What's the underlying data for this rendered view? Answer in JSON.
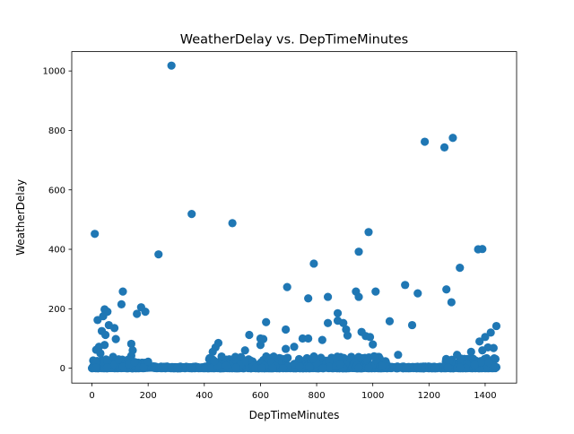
{
  "chart_data": {
    "type": "scatter",
    "title": "WeatherDelay vs. DepTimeMinutes",
    "xlabel": "DepTimeMinutes",
    "ylabel": "WeatherDelay",
    "xlim": [
      -72,
      1512
    ],
    "ylim": [
      -50,
      1065
    ],
    "xticks": [
      0,
      200,
      400,
      600,
      800,
      1000,
      1200,
      1400
    ],
    "yticks": [
      0,
      200,
      400,
      600,
      800,
      1000
    ],
    "grid": false,
    "color": "#1f77b4",
    "dense_bands": [
      {
        "x": [
          0,
          1440
        ],
        "y": [
          0,
          6
        ]
      },
      {
        "x": [
          0,
          200
        ],
        "y": [
          0,
          30
        ]
      },
      {
        "x": [
          400,
          1050
        ],
        "y": [
          0,
          40
        ]
      },
      {
        "x": [
          1260,
          1440
        ],
        "y": [
          0,
          35
        ]
      }
    ],
    "points": [
      [
        10,
        452
      ],
      [
        283,
        1018
      ],
      [
        355,
        519
      ],
      [
        500,
        488
      ],
      [
        237,
        383
      ],
      [
        110,
        258
      ],
      [
        45,
        198
      ],
      [
        55,
        190
      ],
      [
        40,
        175
      ],
      [
        175,
        205
      ],
      [
        190,
        190
      ],
      [
        160,
        183
      ],
      [
        20,
        162
      ],
      [
        105,
        215
      ],
      [
        60,
        145
      ],
      [
        80,
        135
      ],
      [
        35,
        125
      ],
      [
        48,
        112
      ],
      [
        85,
        98
      ],
      [
        45,
        78
      ],
      [
        140,
        82
      ],
      [
        145,
        60
      ],
      [
        140,
        42
      ],
      [
        30,
        50
      ],
      [
        15,
        62
      ],
      [
        25,
        72
      ],
      [
        75,
        38
      ],
      [
        95,
        30
      ],
      [
        200,
        22
      ],
      [
        1185,
        762
      ],
      [
        1285,
        775
      ],
      [
        1255,
        743
      ],
      [
        1310,
        338
      ],
      [
        1375,
        400
      ],
      [
        1390,
        401
      ],
      [
        1115,
        280
      ],
      [
        1160,
        252
      ],
      [
        1262,
        265
      ],
      [
        1280,
        222
      ],
      [
        1140,
        145
      ],
      [
        985,
        458
      ],
      [
        950,
        392
      ],
      [
        790,
        352
      ],
      [
        695,
        273
      ],
      [
        770,
        235
      ],
      [
        840,
        240
      ],
      [
        940,
        258
      ],
      [
        950,
        240
      ],
      [
        1010,
        258
      ],
      [
        875,
        185
      ],
      [
        875,
        160
      ],
      [
        895,
        152
      ],
      [
        840,
        152
      ],
      [
        905,
        130
      ],
      [
        960,
        122
      ],
      [
        975,
        108
      ],
      [
        990,
        105
      ],
      [
        910,
        110
      ],
      [
        620,
        155
      ],
      [
        690,
        130
      ],
      [
        1060,
        158
      ],
      [
        1440,
        142
      ],
      [
        1420,
        120
      ],
      [
        1400,
        105
      ],
      [
        1380,
        90
      ],
      [
        560,
        112
      ],
      [
        600,
        100
      ],
      [
        610,
        98
      ],
      [
        600,
        78
      ],
      [
        440,
        70
      ],
      [
        450,
        85
      ],
      [
        430,
        55
      ],
      [
        545,
        60
      ],
      [
        690,
        65
      ],
      [
        720,
        72
      ],
      [
        750,
        100
      ],
      [
        770,
        100
      ],
      [
        820,
        95
      ],
      [
        1000,
        80
      ],
      [
        1410,
        70
      ],
      [
        1430,
        68
      ],
      [
        1390,
        60
      ],
      [
        1350,
        55
      ],
      [
        1300,
        45
      ],
      [
        1090,
        45
      ]
    ]
  }
}
